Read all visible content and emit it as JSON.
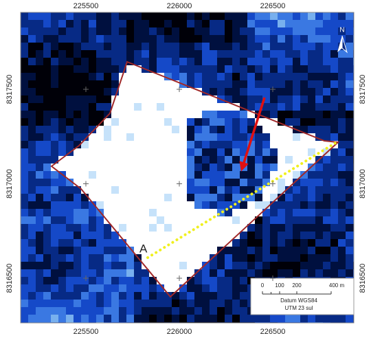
{
  "map": {
    "easting_labels": [
      225500,
      226000,
      226500
    ],
    "northing_labels": [
      8317500,
      8317000,
      8316500
    ],
    "north_label": "N",
    "point_label": "A",
    "scale_bar": {
      "labels": [
        "0",
        "100",
        "200",
        "400 m"
      ],
      "datum": "Datum WGS84",
      "projection": "UTM 23 sul"
    }
  }
}
